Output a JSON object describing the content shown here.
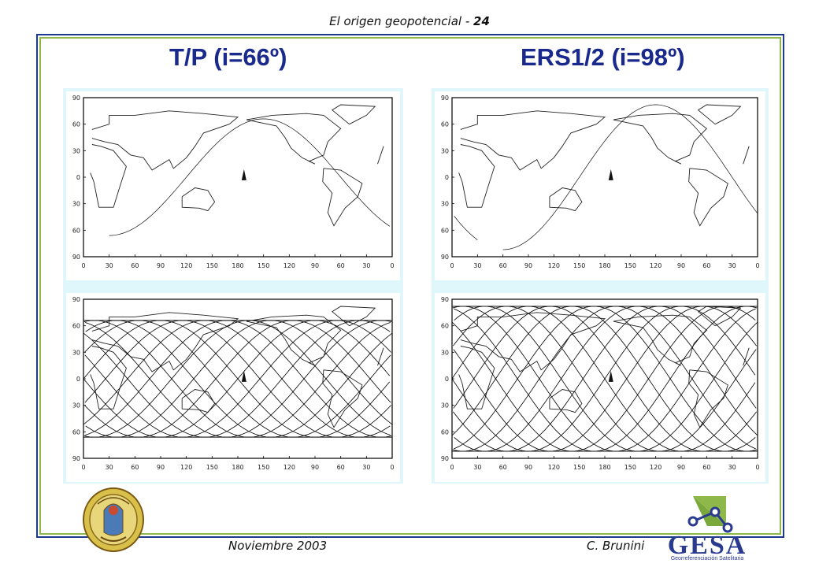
{
  "header": {
    "title": "El origen geopotencial - ",
    "page": "24"
  },
  "titles": {
    "left": "T/P (i=66º)",
    "right": "ERS1/2 (i=98º)"
  },
  "maps": {
    "lat_ticks": [
      "90",
      "60",
      "30",
      "0",
      "30",
      "60",
      "90"
    ],
    "lon_ticks": [
      "0",
      "30",
      "60",
      "90",
      "120",
      "150",
      "180",
      "150",
      "120",
      "90",
      "60",
      "30",
      "0"
    ]
  },
  "footer": {
    "date": "Noviembre 2003",
    "author": "C. Brunini"
  },
  "logo": {
    "name": "GESA",
    "subtitle": "Georreferenciación Satelitaria"
  },
  "colors": {
    "title": "#1a2a8c",
    "frame_outer": "#1d3a8a",
    "frame_inner": "#8fb84a",
    "panel_bg": "#dff6fb",
    "logo_green": "#8fb84a",
    "logo_blue": "#2a3b8f"
  }
}
